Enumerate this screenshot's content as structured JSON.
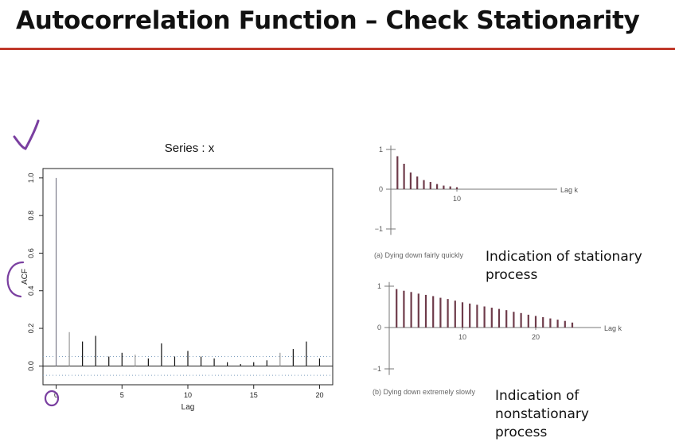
{
  "title": "Autocorrelation Function – Check Stationarity",
  "chart_data": [
    {
      "type": "bar",
      "title": "Series : x",
      "xlabel": "Lag",
      "ylabel": "ACF",
      "xlim": [
        0,
        20
      ],
      "ylim": [
        -0.1,
        1.0
      ],
      "xticks": [
        0,
        5,
        10,
        15,
        20
      ],
      "yticks": [
        0.0,
        0.2,
        0.4,
        0.6,
        0.8,
        1.0
      ],
      "lags": [
        0,
        1,
        2,
        3,
        4,
        5,
        6,
        7,
        8,
        9,
        10,
        11,
        12,
        13,
        14,
        15,
        16,
        17,
        18,
        19,
        20
      ],
      "values": [
        1.0,
        0.18,
        0.13,
        0.16,
        0.05,
        0.07,
        0.06,
        0.04,
        0.12,
        0.05,
        0.08,
        0.05,
        0.04,
        0.02,
        0.01,
        0.02,
        0.03,
        0.07,
        0.09,
        0.13,
        0.04
      ],
      "confidence_bounds": [
        0.05,
        -0.05
      ],
      "annotations": {
        "check_mark": "✓"
      }
    },
    {
      "type": "bar",
      "caption": "(a)  Dying down fairly quickly",
      "xlabel": "Lag k",
      "ylim": [
        -1,
        1
      ],
      "yticks": [
        1,
        0,
        -1
      ],
      "xticks": [
        10
      ],
      "values": [
        0.83,
        0.64,
        0.42,
        0.32,
        0.23,
        0.18,
        0.13,
        0.09,
        0.07,
        0.05
      ],
      "note": "Indication of stationary process"
    },
    {
      "type": "bar",
      "caption": "(b)  Dying down extremely slowly",
      "xlabel": "Lag k",
      "ylim": [
        -1,
        1
      ],
      "yticks": [
        1,
        0,
        -1
      ],
      "xticks": [
        10,
        20
      ],
      "values": [
        0.93,
        0.89,
        0.86,
        0.82,
        0.79,
        0.76,
        0.72,
        0.69,
        0.65,
        0.61,
        0.58,
        0.55,
        0.51,
        0.48,
        0.45,
        0.42,
        0.38,
        0.35,
        0.31,
        0.28,
        0.25,
        0.22,
        0.19,
        0.16,
        0.12
      ],
      "note": "Indication of nonstationary process"
    }
  ],
  "text": {
    "stationary_1": "Indication of stationary",
    "stationary_2": "process",
    "nonstationary_1": "Indication of nonstationary",
    "nonstationary_2": "process"
  },
  "colors": {
    "accent_rule": "#c0392b",
    "bars_right": "#6e3b4a",
    "pen": "#7a3fa0",
    "confidence": "#7f9fbf"
  }
}
